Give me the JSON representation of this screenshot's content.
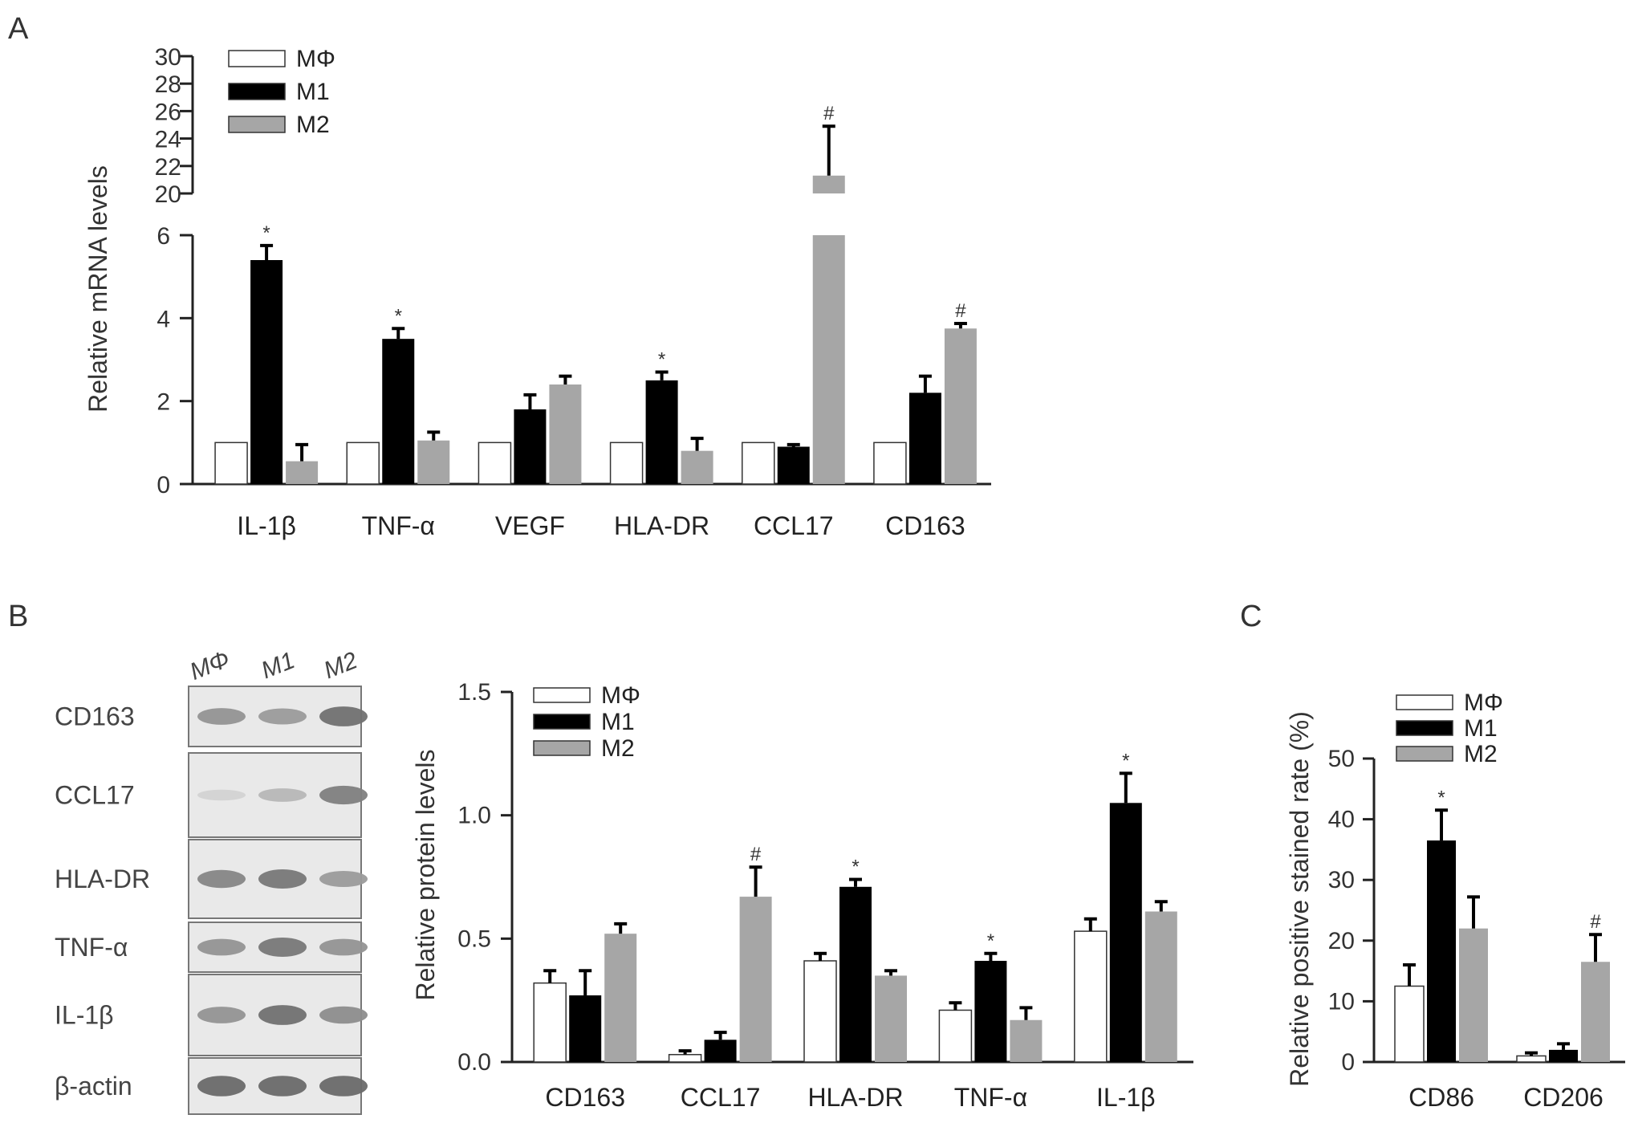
{
  "panels": {
    "a": "A",
    "b": "B",
    "c": "C"
  },
  "chart_data": [
    {
      "panel": "A",
      "type": "bar",
      "ylabel": "Relative mRNA levels",
      "categories": [
        "IL-1β",
        "TNF-α",
        "VEGF",
        "HLA-DR",
        "CCL17",
        "CD163"
      ],
      "axis_break": {
        "lower_range": [
          0,
          6
        ],
        "upper_range": [
          20,
          30
        ]
      },
      "yticks_lower": [
        0,
        2,
        4,
        6
      ],
      "yticks_upper": [
        20,
        22,
        24,
        26,
        28,
        30
      ],
      "series": [
        {
          "name": "MΦ",
          "color": "#ffffff",
          "values": [
            1,
            1,
            1,
            1,
            1,
            1
          ],
          "errors": [
            0,
            0,
            0,
            0,
            0,
            0
          ]
        },
        {
          "name": "M1",
          "color": "#000000",
          "values": [
            5.4,
            3.5,
            1.8,
            2.5,
            0.9,
            2.2
          ],
          "errors": [
            0.35,
            0.25,
            0.35,
            0.2,
            0.05,
            0.4
          ]
        },
        {
          "name": "M2",
          "color": "#a6a6a6",
          "values": [
            0.55,
            1.05,
            2.4,
            0.8,
            21.3,
            3.75
          ],
          "errors": [
            0.4,
            0.2,
            0.2,
            0.3,
            3.6,
            0.12
          ]
        }
      ],
      "significance": [
        {
          "category": 0,
          "series": 1,
          "mark": "*"
        },
        {
          "category": 1,
          "series": 1,
          "mark": "*"
        },
        {
          "category": 3,
          "series": 1,
          "mark": "*"
        },
        {
          "category": 4,
          "series": 2,
          "mark": "#"
        },
        {
          "category": 5,
          "series": 2,
          "mark": "#"
        }
      ]
    },
    {
      "panel": "B",
      "type": "bar",
      "ylabel": "Relative protein levels",
      "categories": [
        "CD163",
        "CCL17",
        "HLA-DR",
        "TNF-α",
        "IL-1β"
      ],
      "ylim": [
        0,
        1.5
      ],
      "yticks": [
        "0.0",
        "0.5",
        "1.0",
        "1.5"
      ],
      "series": [
        {
          "name": "MΦ",
          "color": "#ffffff",
          "values": [
            0.32,
            0.03,
            0.41,
            0.21,
            0.53
          ],
          "errors": [
            0.05,
            0.015,
            0.03,
            0.03,
            0.05
          ]
        },
        {
          "name": "M1",
          "color": "#000000",
          "values": [
            0.27,
            0.09,
            0.71,
            0.41,
            1.05
          ],
          "errors": [
            0.1,
            0.03,
            0.03,
            0.03,
            0.12
          ]
        },
        {
          "name": "M2",
          "color": "#a6a6a6",
          "values": [
            0.52,
            0.67,
            0.35,
            0.17,
            0.61
          ],
          "errors": [
            0.04,
            0.12,
            0.02,
            0.05,
            0.04
          ]
        }
      ],
      "significance": [
        {
          "category": 1,
          "series": 2,
          "mark": "#"
        },
        {
          "category": 2,
          "series": 1,
          "mark": "*"
        },
        {
          "category": 3,
          "series": 1,
          "mark": "*"
        },
        {
          "category": 4,
          "series": 1,
          "mark": "*"
        }
      ]
    },
    {
      "panel": "C",
      "type": "bar",
      "ylabel": "Relative positive stained rate (%)",
      "categories": [
        "CD86",
        "CD206"
      ],
      "ylim": [
        0,
        50
      ],
      "yticks": [
        "0",
        "10",
        "20",
        "30",
        "40",
        "50"
      ],
      "series": [
        {
          "name": "MΦ",
          "color": "#ffffff",
          "values": [
            12.5,
            1.0
          ],
          "errors": [
            3.5,
            0.5
          ]
        },
        {
          "name": "M1",
          "color": "#000000",
          "values": [
            36.5,
            2.0
          ],
          "errors": [
            5.0,
            1.0
          ]
        },
        {
          "name": "M2",
          "color": "#a6a6a6",
          "values": [
            22.0,
            16.5
          ],
          "errors": [
            5.2,
            4.5
          ]
        }
      ],
      "significance": [
        {
          "category": 0,
          "series": 1,
          "mark": "*"
        },
        {
          "category": 1,
          "series": 2,
          "mark": "#"
        }
      ]
    }
  ],
  "western_blot": {
    "lanes": [
      "MΦ",
      "M1",
      "M2"
    ],
    "proteins": [
      {
        "label": "CD163",
        "intensity": [
          0.55,
          0.5,
          0.8
        ]
      },
      {
        "label": "CCL17",
        "intensity": [
          0.1,
          0.3,
          0.7
        ]
      },
      {
        "label": "HLA-DR",
        "intensity": [
          0.65,
          0.75,
          0.5
        ]
      },
      {
        "label": "TNF-α",
        "intensity": [
          0.55,
          0.75,
          0.55
        ]
      },
      {
        "label": "IL-1β",
        "intensity": [
          0.55,
          0.8,
          0.6
        ]
      },
      {
        "label": "β-actin",
        "intensity": [
          0.85,
          0.85,
          0.85
        ]
      }
    ]
  }
}
